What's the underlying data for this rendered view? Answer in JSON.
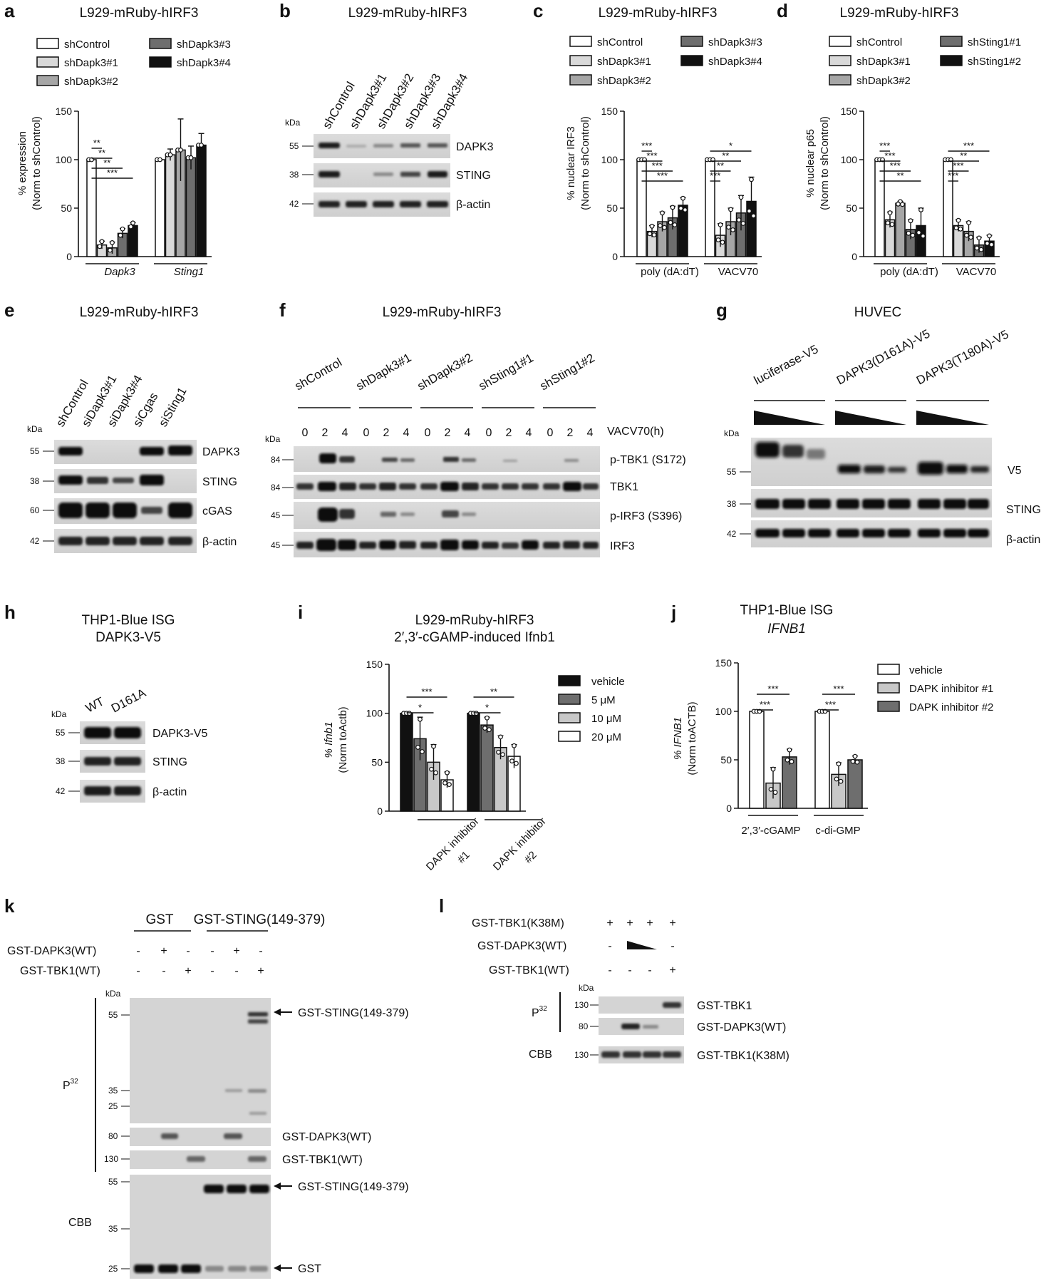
{
  "chart_data": [
    {
      "panel": "a",
      "type": "bar",
      "title": "L929-mRuby-hIRF3",
      "ylabel": "% expression (Norm to shControl)",
      "ylim": [
        0,
        150
      ],
      "yticks": [
        "0",
        "50",
        "100",
        "150"
      ],
      "categories": [
        "Dapk3",
        "Sting1"
      ],
      "series": [
        {
          "name": "shControl",
          "color": "#ffffff",
          "values": [
            100,
            100
          ],
          "err": [
            0,
            0
          ]
        },
        {
          "name": "shDapk3#1",
          "color": "#d9d9d9",
          "values": [
            12,
            105
          ],
          "err": [
            4,
            6
          ]
        },
        {
          "name": "shDapk3#2",
          "color": "#a6a6a6",
          "values": [
            9,
            110
          ],
          "err": [
            6,
            32
          ]
        },
        {
          "name": "shDapk3#3",
          "color": "#6e6e6e",
          "values": [
            24,
            102
          ],
          "err": [
            5,
            12
          ]
        },
        {
          "name": "shDapk3#4",
          "color": "#111111",
          "values": [
            32,
            115
          ],
          "err": [
            3,
            12
          ]
        }
      ],
      "significance": [
        "**",
        "**",
        "**",
        "***"
      ]
    },
    {
      "panel": "c",
      "type": "bar",
      "title": "L929-mRuby-hIRF3",
      "ylabel": "% nuclear IRF3 (Norm to shControl)",
      "ylim": [
        0,
        150
      ],
      "yticks": [
        "0",
        "50",
        "100",
        "150"
      ],
      "categories": [
        "poly (dA:dT)",
        "VACV70"
      ],
      "series": [
        {
          "name": "shControl",
          "color": "#ffffff",
          "values": [
            100,
            100
          ],
          "err": [
            0,
            0
          ]
        },
        {
          "name": "shDapk3#1",
          "color": "#d9d9d9",
          "values": [
            26,
            22
          ],
          "err": [
            6,
            12
          ]
        },
        {
          "name": "shDapk3#2",
          "color": "#a6a6a6",
          "values": [
            36,
            36
          ],
          "err": [
            10,
            14
          ]
        },
        {
          "name": "shDapk3#3",
          "color": "#6e6e6e",
          "values": [
            40,
            45
          ],
          "err": [
            12,
            18
          ]
        },
        {
          "name": "shDapk3#4",
          "color": "#111111",
          "values": [
            53,
            57
          ],
          "err": [
            8,
            25
          ]
        }
      ],
      "significance": [
        "***",
        "***",
        "***",
        "***",
        "*",
        "**",
        "**",
        "***"
      ]
    },
    {
      "panel": "d",
      "type": "bar",
      "title": "L929-mRuby-hIRF3",
      "ylabel": "% nuclear p65 (Norm to shControl)",
      "ylim": [
        0,
        150
      ],
      "yticks": [
        "0",
        "50",
        "100",
        "150"
      ],
      "categories": [
        "poly (dA:dT)",
        "VACV70"
      ],
      "series": [
        {
          "name": "shControl",
          "color": "#ffffff",
          "values": [
            100,
            100
          ],
          "err": [
            0,
            0
          ]
        },
        {
          "name": "shDapk3#1",
          "color": "#d9d9d9",
          "values": [
            38,
            32
          ],
          "err": [
            8,
            6
          ]
        },
        {
          "name": "shDapk3#2",
          "color": "#a6a6a6",
          "values": [
            55,
            26
          ],
          "err": [
            2,
            10
          ]
        },
        {
          "name": "shSting1#1",
          "color": "#6e6e6e",
          "values": [
            28,
            12
          ],
          "err": [
            10,
            8
          ]
        },
        {
          "name": "shSting1#2",
          "color": "#111111",
          "values": [
            32,
            16
          ],
          "err": [
            18,
            6
          ]
        }
      ],
      "significance": [
        "***",
        "***",
        "***",
        "**",
        "***",
        "**",
        "***",
        "***"
      ]
    },
    {
      "panel": "i",
      "type": "bar",
      "title": "L929-mRuby-hIRF3",
      "subtitle": "2′,3′-cGAMP-induced Ifnb1",
      "ylabel": "% Ifnb1 (Norm toActb)",
      "ylim": [
        0,
        150
      ],
      "yticks": [
        "0",
        "50",
        "100",
        "150"
      ],
      "categories": [
        "DAPK inhibitor #1",
        "DAPK inhibitor #2"
      ],
      "series": [
        {
          "name": "vehicle",
          "color": "#111111",
          "values": [
            100,
            100
          ],
          "err": [
            0,
            0
          ]
        },
        {
          "name": "5 μM",
          "color": "#6e6e6e",
          "values": [
            74,
            88
          ],
          "err": [
            22,
            8
          ]
        },
        {
          "name": "10 μM",
          "color": "#c8c8c8",
          "values": [
            50,
            65
          ],
          "err": [
            18,
            12
          ]
        },
        {
          "name": "20 μM",
          "color": "#ffffff",
          "values": [
            32,
            56
          ],
          "err": [
            8,
            12
          ]
        }
      ],
      "significance": [
        "*",
        "***",
        "*",
        "**"
      ]
    },
    {
      "panel": "j",
      "type": "bar",
      "title": "THP1-Blue ISG",
      "subtitle": "IFNB1",
      "ylabel": "% IFNB1 (Norm toACTB)",
      "ylim": [
        0,
        150
      ],
      "yticks": [
        "0",
        "50",
        "100",
        "150"
      ],
      "categories": [
        "2′,3′-cGAMP",
        "c-di-GMP"
      ],
      "series": [
        {
          "name": "vehicle",
          "color": "#ffffff",
          "values": [
            100,
            100
          ],
          "err": [
            0,
            0
          ]
        },
        {
          "name": "DAPK inhibitor #1",
          "color": "#c8c8c8",
          "values": [
            26,
            35
          ],
          "err": [
            16,
            12
          ]
        },
        {
          "name": "DAPK inhibitor #2",
          "color": "#6e6e6e",
          "values": [
            53,
            50
          ],
          "err": [
            8,
            4
          ]
        }
      ],
      "significance": [
        "***",
        "***",
        "***",
        "***"
      ]
    }
  ],
  "panel_labels": {
    "a": "a",
    "b": "b",
    "c": "c",
    "d": "d",
    "e": "e",
    "f": "f",
    "g": "g",
    "h": "h",
    "i": "i",
    "j": "j",
    "k": "k",
    "l": "l"
  },
  "a": {
    "title": "L929-mRuby-hIRF3",
    "legend": [
      "shControl",
      "shDapk3#1",
      "shDapk3#2",
      "shDapk3#3",
      "shDapk3#4"
    ],
    "ylabel1": "% expression",
    "ylabel2": "(Norm to shControl)",
    "cat1": "Dapk3",
    "cat2": "Sting1",
    "sig": [
      "**",
      "**",
      "**",
      "***"
    ]
  },
  "b": {
    "title": "L929-mRuby-hIRF3",
    "kda": "kDa",
    "lanes": [
      "shControl",
      "shDapk3#1",
      "shDapk3#2",
      "shDapk3#3",
      "shDapk3#4"
    ],
    "mw": [
      "55",
      "38",
      "42"
    ],
    "bands": [
      "DAPK3",
      "STING",
      "β-actin"
    ]
  },
  "c": {
    "title": "L929-mRuby-hIRF3",
    "legend": [
      "shControl",
      "shDapk3#1",
      "shDapk3#2",
      "shDapk3#3",
      "shDapk3#4"
    ],
    "ylabel1": "% nuclear IRF3",
    "ylabel2": "(Norm to shControl)",
    "cat1": "poly (dA:dT)",
    "cat2": "VACV70",
    "sig": [
      "***",
      "***",
      "***",
      "***",
      "*",
      "**",
      "**",
      "***"
    ]
  },
  "d": {
    "title": "L929-mRuby-hIRF3",
    "legend": [
      "shControl",
      "shDapk3#1",
      "shDapk3#2",
      "shSting1#1",
      "shSting1#2"
    ],
    "ylabel1": "% nuclear p65",
    "ylabel2": "(Norm to shControl)",
    "cat1": "poly (dA:dT)",
    "cat2": "VACV70",
    "sig": [
      "***",
      "***",
      "***",
      "**",
      "***",
      "**",
      "***",
      "***"
    ]
  },
  "e": {
    "title": "L929-mRuby-hIRF3",
    "kda": "kDa",
    "lanes": [
      "shControl",
      "siDapk3#1",
      "siDapk3#4",
      "siCgas",
      "siSting1"
    ],
    "mw": [
      "55",
      "38",
      "60",
      "42"
    ],
    "bands": [
      "DAPK3",
      "STING",
      "cGAS",
      "β-actin"
    ]
  },
  "f": {
    "title": "L929-mRuby-hIRF3",
    "kda": "kDa",
    "groups": [
      "shControl",
      "shDapk3#1",
      "shDapk3#2",
      "shSting1#1",
      "shSting1#2"
    ],
    "time_label": "VACV70(h)",
    "times": [
      "0",
      "2",
      "4"
    ],
    "mw": [
      "84",
      "84",
      "45",
      "45"
    ],
    "bands": [
      "p-TBK1 (S172)",
      "TBK1",
      "p-IRF3 (S396)",
      "IRF3"
    ]
  },
  "g": {
    "title": "HUVEC",
    "kda": "kDa",
    "groups": [
      "luciferase-V5",
      "DAPK3(D161A)-V5",
      "DAPK3(T180A)-V5"
    ],
    "mw": [
      "55",
      "38",
      "42"
    ],
    "bands": [
      "V5",
      "STING",
      "β-actin"
    ]
  },
  "h": {
    "title1": "THP1-Blue ISG",
    "title2": "DAPK3-V5",
    "kda": "kDa",
    "lanes": [
      "WT",
      "D161A"
    ],
    "mw": [
      "55",
      "38",
      "42"
    ],
    "bands": [
      "DAPK3-V5",
      "STING",
      "β-actin"
    ]
  },
  "i": {
    "title1": "L929-mRuby-hIRF3",
    "title2": "2′,3′-cGAMP-induced Ifnb1",
    "ylabel1": "% Ifnb1",
    "ylabel2": "(Norm toActb)",
    "legend": [
      "vehicle",
      "5 μM",
      "10 μM",
      "20 μM"
    ],
    "cat1a": "DAPK inhibitor",
    "cat1b": "#1",
    "cat2a": "DAPK inhibitor",
    "cat2b": "#2",
    "sig": [
      "*",
      "***",
      "*",
      "**"
    ]
  },
  "j": {
    "title1": "THP1-Blue ISG",
    "title2": "IFNB1",
    "ylabel1": "% IFNB1",
    "ylabel2": "(Norm toACTB)",
    "legend": [
      "vehicle",
      "DAPK inhibitor #1",
      "DAPK inhibitor #2"
    ],
    "cat1": "2′,3′-cGAMP",
    "cat2": "c-di-GMP",
    "sig": [
      "***",
      "***",
      "***",
      "***"
    ]
  },
  "k": {
    "hdr_gst": "GST",
    "hdr_sting": "GST-STING(149-379)",
    "row1": "GST-DAPK3(WT)",
    "row2": "GST-TBK1(WT)",
    "row1_marks": [
      "-",
      "+",
      "-",
      "-",
      "+",
      "-"
    ],
    "row2_marks": [
      "-",
      "-",
      "+",
      "-",
      "-",
      "+"
    ],
    "kda": "kDa",
    "p32": "P",
    "p32sup": "32",
    "cbb": "CBB",
    "mw_top": [
      "55",
      "35",
      "25"
    ],
    "mw_mid": [
      "80",
      "130"
    ],
    "mw_bot": [
      "55",
      "35",
      "25"
    ],
    "arrow1": "GST-STING(149-379)",
    "band_dapk3": "GST-DAPK3(WT)",
    "band_tbk1": "GST-TBK1(WT)",
    "arrow2": "GST-STING(149-379)",
    "arrow3": "GST"
  },
  "l": {
    "row1": "GST-TBK1(K38M)",
    "row2": "GST-DAPK3(WT)",
    "row3": "GST-TBK1(WT)",
    "row1_marks": [
      "+",
      "+",
      "+",
      "+"
    ],
    "row2_marks": [
      "-",
      "",
      "",
      "-"
    ],
    "row3_marks": [
      "-",
      "-",
      "-",
      "+"
    ],
    "kda": "kDa",
    "p32": "P",
    "p32sup": "32",
    "cbb": "CBB",
    "mw": [
      "130",
      "80",
      "130"
    ],
    "bands": [
      "GST-TBK1",
      "GST-DAPK3(WT)",
      "GST-TBK1(K38M)"
    ]
  }
}
